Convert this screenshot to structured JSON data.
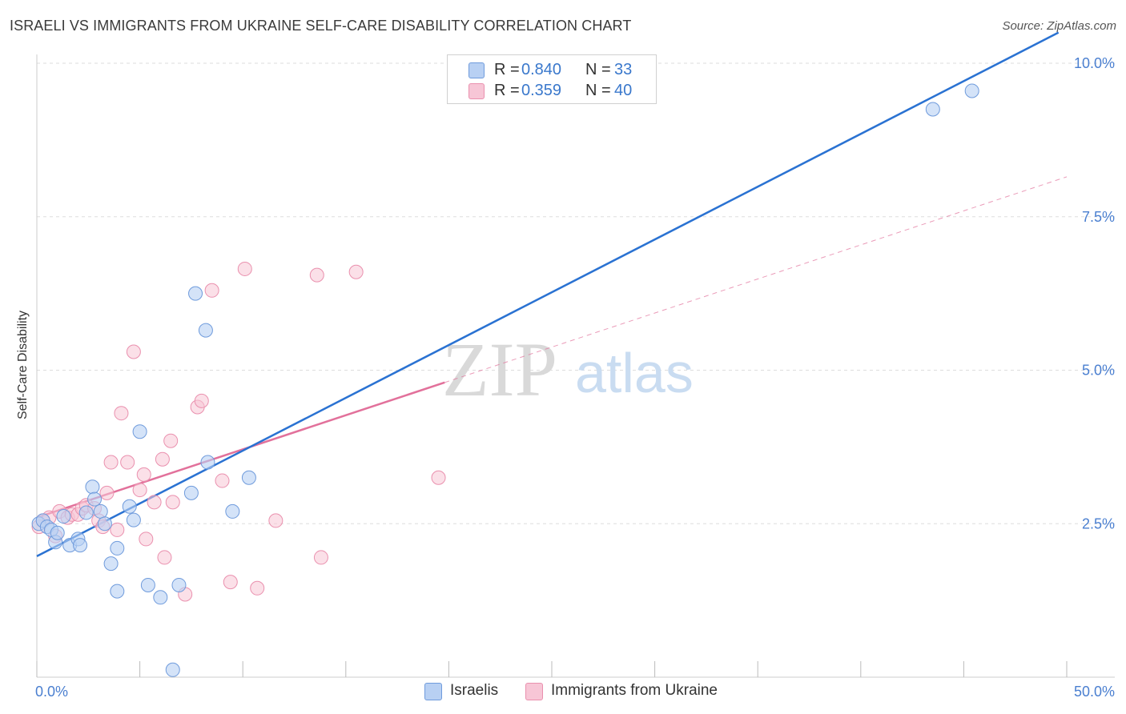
{
  "title": "ISRAELI VS IMMIGRANTS FROM UKRAINE SELF-CARE DISABILITY CORRELATION CHART",
  "source": "Source: ZipAtlas.com",
  "watermark": {
    "zip": "ZIP",
    "atlas": "atlas"
  },
  "colors": {
    "blue_fill": "#b8d0f3",
    "blue_stroke": "#6f9bdc",
    "blue_line": "#2a72d2",
    "pink_fill": "#f7c6d6",
    "pink_stroke": "#ea90ae",
    "pink_line": "#e2719b",
    "grid": "#dddddd",
    "tick_text": "#4a7fd0"
  },
  "legend": {
    "rows": [
      {
        "r_label": "R =",
        "r_value": "0.840",
        "n_label": "N =",
        "n_value": "33"
      },
      {
        "r_label": "R =",
        "r_value": "0.359",
        "n_label": "N =",
        "n_value": "40"
      }
    ]
  },
  "chart_data": {
    "type": "scatter",
    "title": "ISRAELI VS IMMIGRANTS FROM UKRAINE SELF-CARE DISABILITY CORRELATION CHART",
    "xlabel": "",
    "ylabel": "Self-Care Disability",
    "xlim": [
      0,
      50
    ],
    "ylim": [
      0,
      10.5
    ],
    "x_tick_labels": [
      "0.0%",
      "50.0%"
    ],
    "y_ticks": [
      2.5,
      5.0,
      7.5,
      10.0
    ],
    "y_tick_labels": [
      "2.5%",
      "5.0%",
      "7.5%",
      "10.0%"
    ],
    "grid": true,
    "legend_position": "bottom",
    "series": [
      {
        "name": "Israelis",
        "color_key": "blue",
        "r": 0.84,
        "n": 33,
        "trend": {
          "x0": 0,
          "y0": 1.97,
          "x1": 49.6,
          "y1": 10.5,
          "style": "solid"
        },
        "points": [
          [
            0.1,
            2.5
          ],
          [
            0.3,
            2.55
          ],
          [
            0.5,
            2.45
          ],
          [
            0.7,
            2.4
          ],
          [
            0.9,
            2.2
          ],
          [
            1.0,
            2.35
          ],
          [
            1.3,
            2.62
          ],
          [
            1.6,
            2.15
          ],
          [
            2.0,
            2.25
          ],
          [
            2.1,
            2.15
          ],
          [
            2.4,
            2.68
          ],
          [
            2.7,
            3.1
          ],
          [
            2.8,
            2.9
          ],
          [
            3.1,
            2.7
          ],
          [
            3.3,
            2.5
          ],
          [
            3.6,
            1.85
          ],
          [
            3.9,
            1.4
          ],
          [
            3.9,
            2.1
          ],
          [
            4.5,
            2.78
          ],
          [
            4.7,
            2.56
          ],
          [
            5.0,
            4.0
          ],
          [
            5.4,
            1.5
          ],
          [
            6.0,
            1.3
          ],
          [
            6.6,
            0.12
          ],
          [
            6.9,
            1.5
          ],
          [
            7.5,
            3.0
          ],
          [
            7.7,
            6.25
          ],
          [
            8.2,
            5.65
          ],
          [
            8.3,
            3.5
          ],
          [
            9.5,
            2.7
          ],
          [
            10.3,
            3.25
          ],
          [
            43.5,
            9.25
          ],
          [
            45.4,
            9.55
          ]
        ]
      },
      {
        "name": "Immigrants from Ukraine",
        "color_key": "pink",
        "r": 0.359,
        "n": 40,
        "trend": {
          "x0": 0,
          "y0": 2.6,
          "x1": 19.8,
          "y1": 4.8,
          "style": "solid"
        },
        "trend_extension": {
          "x0": 19.8,
          "y0": 4.8,
          "x1": 50,
          "y1": 8.15,
          "style": "dashed"
        },
        "points": [
          [
            0.1,
            2.45
          ],
          [
            0.3,
            2.55
          ],
          [
            0.6,
            2.6
          ],
          [
            0.9,
            2.3
          ],
          [
            1.1,
            2.7
          ],
          [
            1.5,
            2.6
          ],
          [
            1.7,
            2.65
          ],
          [
            2.0,
            2.65
          ],
          [
            2.2,
            2.75
          ],
          [
            2.4,
            2.8
          ],
          [
            2.8,
            2.75
          ],
          [
            3.0,
            2.55
          ],
          [
            3.2,
            2.45
          ],
          [
            3.4,
            3.0
          ],
          [
            3.6,
            3.5
          ],
          [
            3.9,
            2.4
          ],
          [
            4.1,
            4.3
          ],
          [
            4.4,
            3.5
          ],
          [
            4.7,
            5.3
          ],
          [
            5.0,
            3.05
          ],
          [
            5.2,
            3.3
          ],
          [
            5.3,
            2.25
          ],
          [
            5.7,
            2.85
          ],
          [
            6.1,
            3.55
          ],
          [
            6.2,
            1.95
          ],
          [
            6.5,
            3.85
          ],
          [
            6.6,
            2.85
          ],
          [
            7.2,
            1.35
          ],
          [
            7.8,
            4.4
          ],
          [
            8.0,
            4.5
          ],
          [
            8.5,
            6.3
          ],
          [
            9.0,
            3.2
          ],
          [
            9.4,
            1.55
          ],
          [
            10.1,
            6.65
          ],
          [
            10.7,
            1.45
          ],
          [
            11.6,
            2.55
          ],
          [
            13.6,
            6.55
          ],
          [
            13.8,
            1.95
          ],
          [
            15.5,
            6.6
          ],
          [
            19.5,
            3.25
          ]
        ]
      }
    ]
  }
}
